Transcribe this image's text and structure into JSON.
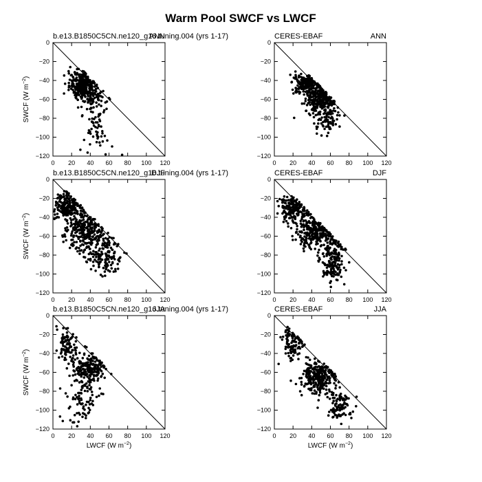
{
  "figure": {
    "title": "Warm Pool SWCF vs LWCF"
  },
  "chart_data": [
    {
      "type": "scatter",
      "left_title": "b.e13.B1850C5CN.ne120_g16.tuning.004 (yrs 1-17)",
      "right_title": "ANN",
      "xlabel": "",
      "ylabel": "SWCF (W m-2)",
      "xlim": [
        0,
        120
      ],
      "ylim": [
        -120,
        0
      ],
      "xticks": [
        "0",
        "20",
        "40",
        "60",
        "80",
        "100",
        "120"
      ],
      "yticks": [
        "0",
        "-20",
        "-40",
        "-60",
        "-80",
        "-100",
        "-120"
      ],
      "one_to_one_line": true,
      "clusters": [
        {
          "x": 32,
          "sx": 7,
          "y": -45,
          "sy": 7,
          "n": 340
        },
        {
          "x": 43,
          "sx": 7,
          "y": -62,
          "sy": 7,
          "n": 50
        },
        {
          "x": 45,
          "sx": 6,
          "y": -88,
          "sy": 10,
          "n": 40
        },
        {
          "x": 50,
          "sx": 10,
          "y": -105,
          "sy": 8,
          "n": 12
        }
      ]
    },
    {
      "type": "scatter",
      "left_title": "CERES-EBAF",
      "right_title": "ANN",
      "xlabel": "",
      "ylabel": "",
      "xlim": [
        0,
        120
      ],
      "ylim": [
        -120,
        0
      ],
      "xticks": [
        "0",
        "20",
        "40",
        "60",
        "80",
        "100",
        "120"
      ],
      "yticks": [
        "0",
        "-20",
        "-40",
        "-60",
        "-80",
        "-100",
        "-120"
      ],
      "one_to_one_line": true,
      "clusters": [
        {
          "x": 33,
          "sx": 6,
          "y": -43,
          "sy": 5,
          "n": 180
        },
        {
          "x": 48,
          "sx": 8,
          "y": -60,
          "sy": 9,
          "n": 250
        },
        {
          "x": 57,
          "sx": 7,
          "y": -78,
          "sy": 9,
          "n": 90
        }
      ]
    },
    {
      "type": "scatter",
      "left_title": "b.e13.B1850C5CN.ne120_g16.tuning.004 (yrs 1-17)",
      "right_title": "DJF",
      "xlabel": "",
      "ylabel": "SWCF (W m-2)",
      "xlim": [
        0,
        120
      ],
      "ylim": [
        -120,
        0
      ],
      "xticks": [
        "0",
        "20",
        "40",
        "60",
        "80",
        "100",
        "120"
      ],
      "yticks": [
        "0",
        "-20",
        "-40",
        "-60",
        "-80",
        "-100",
        "-120"
      ],
      "one_to_one_line": true,
      "clusters": [
        {
          "x": 15,
          "sx": 8,
          "y": -28,
          "sy": 7,
          "n": 200
        },
        {
          "x": 35,
          "sx": 10,
          "y": -55,
          "sy": 10,
          "n": 260
        },
        {
          "x": 55,
          "sx": 9,
          "y": -80,
          "sy": 10,
          "n": 140
        },
        {
          "x": 30,
          "sx": 12,
          "y": -80,
          "sy": 15,
          "n": 20
        }
      ]
    },
    {
      "type": "scatter",
      "left_title": "CERES-EBAF",
      "right_title": "DJF",
      "xlabel": "",
      "ylabel": "",
      "xlim": [
        0,
        120
      ],
      "ylim": [
        -120,
        0
      ],
      "xticks": [
        "0",
        "20",
        "40",
        "60",
        "80",
        "100",
        "120"
      ],
      "yticks": [
        "0",
        "-20",
        "-40",
        "-60",
        "-80",
        "-100",
        "-120"
      ],
      "one_to_one_line": true,
      "clusters": [
        {
          "x": 20,
          "sx": 7,
          "y": -30,
          "sy": 7,
          "n": 180
        },
        {
          "x": 42,
          "sx": 10,
          "y": -55,
          "sy": 10,
          "n": 260
        },
        {
          "x": 63,
          "sx": 7,
          "y": -85,
          "sy": 12,
          "n": 180
        }
      ]
    },
    {
      "type": "scatter",
      "left_title": "b.e13.B1850C5CN.ne120_g16.tuning.004 (yrs 1-17)",
      "right_title": "JJA",
      "xlabel": "LWCF (W m-2)",
      "ylabel": "SWCF (W m-2)",
      "xlim": [
        0,
        120
      ],
      "ylim": [
        -120,
        0
      ],
      "xticks": [
        "0",
        "20",
        "40",
        "60",
        "80",
        "100",
        "120"
      ],
      "yticks": [
        "0",
        "-20",
        "-40",
        "-60",
        "-80",
        "-100",
        "-120"
      ],
      "one_to_one_line": true,
      "clusters": [
        {
          "x": 15,
          "sx": 5,
          "y": -30,
          "sy": 8,
          "n": 90
        },
        {
          "x": 38,
          "sx": 9,
          "y": -55,
          "sy": 8,
          "n": 200
        },
        {
          "x": 30,
          "sx": 10,
          "y": -85,
          "sy": 15,
          "n": 90
        }
      ]
    },
    {
      "type": "scatter",
      "left_title": "CERES-EBAF",
      "right_title": "JJA",
      "xlabel": "LWCF (W m-2)",
      "ylabel": "",
      "xlim": [
        0,
        120
      ],
      "ylim": [
        -120,
        0
      ],
      "xticks": [
        "0",
        "20",
        "40",
        "60",
        "80",
        "100",
        "120"
      ],
      "yticks": [
        "0",
        "-20",
        "-40",
        "-60",
        "-80",
        "-100",
        "-120"
      ],
      "one_to_one_line": true,
      "clusters": [
        {
          "x": 20,
          "sx": 6,
          "y": -30,
          "sy": 9,
          "n": 100
        },
        {
          "x": 47,
          "sx": 9,
          "y": -65,
          "sy": 9,
          "n": 280
        },
        {
          "x": 70,
          "sx": 7,
          "y": -95,
          "sy": 8,
          "n": 90
        }
      ]
    }
  ]
}
